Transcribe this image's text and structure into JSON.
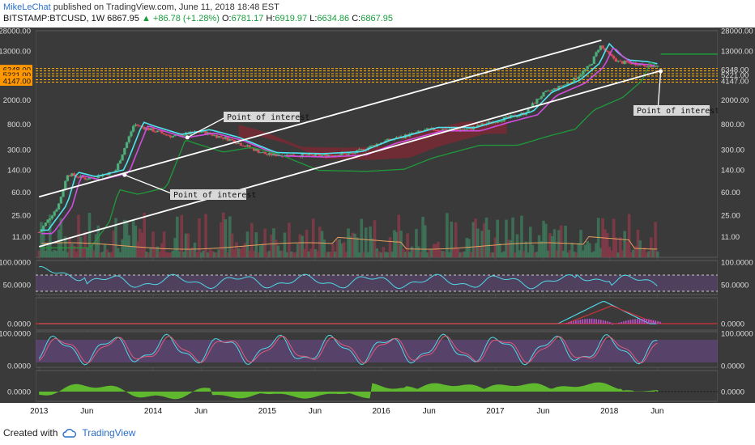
{
  "header": {
    "author": "MikeLeChat",
    "published_text": "published on TradingView.com, June 11, 2018 18:48 EST",
    "symbol": "BITSTAMP:BTCUSD, 1W",
    "price": "6867.95",
    "change": "▲ +86.78 (+1.28%)",
    "o_label": "O:",
    "o_val": "6781.17",
    "h_label": "H:",
    "h_val": "6919.97",
    "l_label": "L:",
    "l_val": "6634.86",
    "c_label": "C:",
    "c_val": "6867.95"
  },
  "footer": {
    "created_with": "Created with",
    "brand": "TradingView"
  },
  "annotations": [
    "Point of interest",
    "Point of interest",
    "Point of interest"
  ],
  "chart_data": [
    {
      "type": "candlestick",
      "scale": "log",
      "ylim": [
        5,
        28000
      ],
      "y_ticks": [
        "28000.00",
        "13000.00",
        "6348.00",
        "5221.00",
        "4147.00",
        "2000.00",
        "800.00",
        "300.00",
        "140.00",
        "60.00",
        "25.00",
        "11.00"
      ],
      "highlighted_levels": [
        6348,
        5221,
        4147
      ],
      "x_ticks": [
        "2013",
        "Jun",
        "2014",
        "Jun",
        "2015",
        "Jun",
        "2016",
        "Jun",
        "2017",
        "Jun",
        "2018",
        "Jun"
      ],
      "price_path": {
        "x": [
          "2013-01",
          "2013-03",
          "2013-04",
          "2013-06",
          "2013-09",
          "2013-11",
          "2013-12",
          "2014-03",
          "2014-06",
          "2014-09",
          "2015-01",
          "2015-06",
          "2015-10",
          "2016-01",
          "2016-06",
          "2016-10",
          "2017-01",
          "2017-04",
          "2017-06",
          "2017-09",
          "2017-11",
          "2017-12",
          "2018-01",
          "2018-02",
          "2018-04",
          "2018-06"
        ],
        "y": [
          13,
          35,
          120,
          100,
          130,
          800,
          700,
          500,
          600,
          450,
          250,
          240,
          260,
          400,
          650,
          650,
          900,
          1200,
          2500,
          4000,
          7500,
          16000,
          11000,
          8500,
          8000,
          6868
        ]
      }
    },
    {
      "type": "line",
      "title": "",
      "ylim": [
        0,
        100
      ],
      "y_ticks": [
        "100.0000",
        "50.0000"
      ]
    },
    {
      "type": "line",
      "title": "",
      "y_ticks": [
        "0.0000"
      ]
    },
    {
      "type": "line",
      "title": "",
      "ylim": [
        0,
        100
      ],
      "y_ticks": [
        "100.0000",
        "0.0000"
      ]
    },
    {
      "type": "area",
      "title": "",
      "y_ticks": [
        "0.0000"
      ]
    }
  ]
}
